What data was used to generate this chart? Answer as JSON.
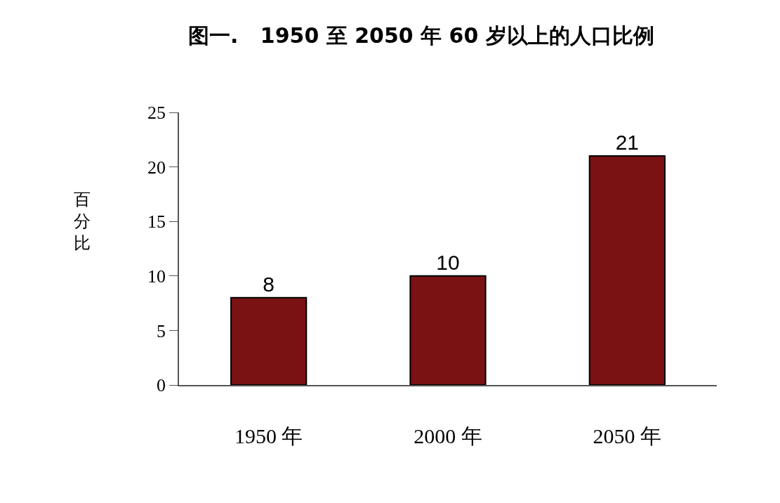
{
  "chart_data": {
    "type": "bar",
    "title": "图一.   1950 至 2050 年 60 岁以上的人口比例",
    "ylabel": "百分比",
    "categories": [
      "1950 年",
      "2000 年",
      "2050 年"
    ],
    "values": [
      8,
      10,
      21
    ],
    "color": "#7a1214",
    "ylim": [
      0,
      25
    ],
    "yticks": [
      0,
      5,
      10,
      15,
      20,
      25
    ],
    "data_labels": true,
    "legend": false
  }
}
